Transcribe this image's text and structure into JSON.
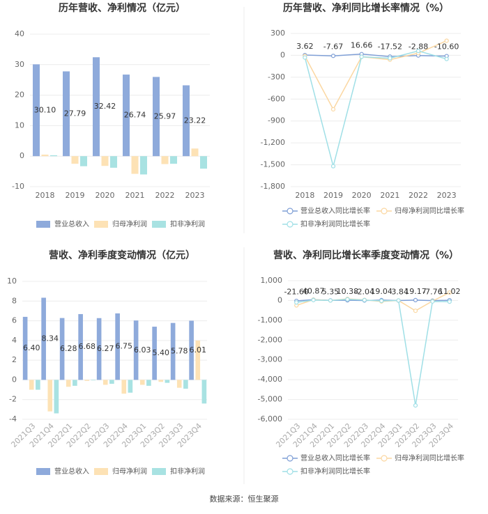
{
  "chart_data": [
    {
      "type": "bar",
      "title": "历年营收、净利情况（亿元）",
      "categories": [
        "2018",
        "2019",
        "2020",
        "2021",
        "2022",
        "2023"
      ],
      "series": [
        {
          "name": "营业总收入",
          "color": "#8eaadb",
          "values": [
            30.1,
            27.79,
            32.42,
            26.74,
            25.97,
            23.22
          ],
          "value_labels": [
            "30.10",
            "27.79",
            "32.42",
            "26.74",
            "25.97",
            "23.22"
          ]
        },
        {
          "name": "归母净利润",
          "color": "#fde2b5",
          "values": [
            0.5,
            -2.5,
            -3.2,
            -5.8,
            -2.6,
            2.5
          ]
        },
        {
          "name": "扣非净利润",
          "color": "#a8e2e2",
          "values": [
            0.3,
            -3.3,
            -3.8,
            -6.0,
            -2.5,
            -4.1
          ]
        }
      ],
      "ylim": [
        -10,
        40
      ],
      "yticks": [
        -10,
        0,
        10,
        20,
        30,
        40
      ],
      "grid": true
    },
    {
      "type": "line",
      "title": "历年营收、净利同比增长率情况（%）",
      "categories": [
        "2018",
        "2019",
        "2020",
        "2021",
        "2022",
        "2023"
      ],
      "series": [
        {
          "name": "营业总收入同比增长率",
          "color": "#7f9fd6",
          "values": [
            3.62,
            -7.67,
            16.66,
            -17.52,
            -2.88,
            -10.6
          ],
          "value_labels": [
            "3.62",
            "-7.67",
            "16.66",
            "-17.52",
            "-2.88",
            "-10.60"
          ]
        },
        {
          "name": "归母净利润同比增长率",
          "color": "#fbd7a1",
          "values": [
            -10,
            -740,
            -20,
            -60,
            30,
            200
          ]
        },
        {
          "name": "扣非净利润同比增长率",
          "color": "#9fdfe6",
          "values": [
            -30,
            -1520,
            -20,
            -40,
            60,
            -50
          ]
        }
      ],
      "ylim": [
        -1800,
        300
      ],
      "yticks": [
        {
          "value": -1800,
          "label": "-1,800"
        },
        {
          "value": -1500,
          "label": "-1,500"
        },
        {
          "value": -1200,
          "label": "-1,200"
        },
        -900,
        -600,
        -300,
        0,
        300
      ],
      "grid": true
    },
    {
      "type": "bar",
      "title": "营收、净利季度变动情况（亿元）",
      "categories": [
        "2021Q3",
        "2021Q4",
        "2022Q1",
        "2022Q2",
        "2022Q3",
        "2022Q4",
        "2023Q1",
        "2023Q2",
        "2023Q3",
        "2023Q4"
      ],
      "series": [
        {
          "name": "营业总收入",
          "color": "#8eaadb",
          "values": [
            6.4,
            8.34,
            6.28,
            6.68,
            6.27,
            6.75,
            6.03,
            5.4,
            5.78,
            6.01
          ],
          "value_labels": [
            "6.40",
            "8.34",
            "6.28",
            "6.68",
            "6.27",
            "6.75",
            "6.03",
            "5.40",
            "5.78",
            "6.01"
          ]
        },
        {
          "name": "归母净利润",
          "color": "#fde2b5",
          "values": [
            -1.0,
            -3.2,
            -0.7,
            -0.1,
            -0.5,
            -1.4,
            -0.5,
            -0.2,
            -0.8,
            4.0
          ]
        },
        {
          "name": "扣非净利润",
          "color": "#a8e2e2",
          "values": [
            -1.0,
            -3.4,
            -0.6,
            -0.05,
            -0.4,
            -1.3,
            -0.6,
            -0.3,
            -0.9,
            -2.4
          ]
        }
      ],
      "ylim": [
        -4,
        10
      ],
      "yticks": [
        -4,
        -2,
        0,
        2,
        4,
        6,
        8,
        10
      ],
      "grid": true
    },
    {
      "type": "line",
      "title": "营收、净利同比增长率季度变动情况（%）",
      "categories": [
        "2021Q3",
        "2021Q4",
        "2022Q1",
        "2022Q2",
        "2022Q3",
        "2022Q4",
        "2023Q1",
        "2023Q2",
        "2023Q3",
        "2023Q4"
      ],
      "series": [
        {
          "name": "营业总收入同比增长率",
          "color": "#7f9fd6",
          "values": [
            -21.6,
            40.87,
            5.35,
            10.38,
            -2.04,
            19.04,
            -3.84,
            19.17,
            -7.76,
            11.02
          ],
          "value_labels": [
            "-21.60",
            "40.87",
            "5.35",
            "10.38",
            "-2.04",
            "19.04",
            "-3.84",
            "19.17",
            "-7.76",
            "11.02"
          ]
        },
        {
          "name": "归母净利润同比增长率",
          "color": "#fbd7a1",
          "values": [
            -250,
            40,
            0,
            80,
            30,
            -50,
            0,
            -520,
            -30,
            400
          ]
        },
        {
          "name": "扣非净利润同比增长率",
          "color": "#9fdfe6",
          "values": [
            -100,
            20,
            0,
            60,
            20,
            -20,
            0,
            -5300,
            -50,
            -60
          ]
        }
      ],
      "ylim": [
        -6000,
        1000
      ],
      "yticks": [
        {
          "value": -6000,
          "label": "-6,000"
        },
        {
          "value": -5000,
          "label": "-5,000"
        },
        {
          "value": -4000,
          "label": "-4,000"
        },
        {
          "value": -3000,
          "label": "-3,000"
        },
        {
          "value": -2000,
          "label": "-2,000"
        },
        {
          "value": -1000,
          "label": "-1,000"
        },
        0,
        {
          "value": 1000,
          "label": "1,000"
        }
      ],
      "grid": true
    }
  ],
  "source": "数据来源：恒生聚源"
}
